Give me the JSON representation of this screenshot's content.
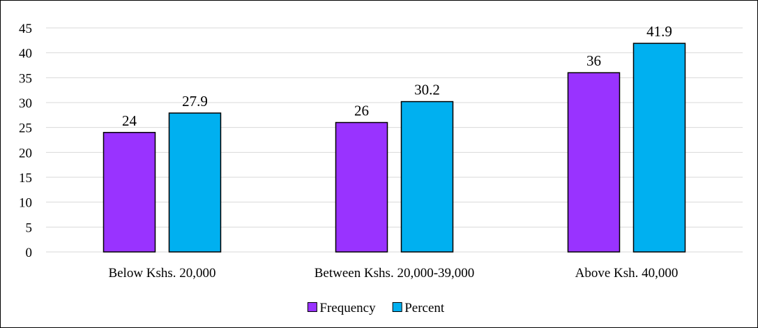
{
  "chart_data": {
    "type": "bar",
    "categories": [
      "Below Kshs. 20,000",
      "Between Kshs. 20,000-39,000",
      "Above Ksh. 40,000"
    ],
    "series": [
      {
        "name": "Frequency",
        "values": [
          24,
          26,
          36
        ],
        "color": "#9933FF"
      },
      {
        "name": "Percent",
        "values": [
          27.9,
          30.2,
          41.9
        ],
        "color": "#00B0F0"
      }
    ],
    "yticks": [
      0,
      5,
      10,
      15,
      20,
      25,
      30,
      35,
      40,
      45
    ],
    "ylim": [
      0,
      45
    ],
    "grid": true,
    "legend_position": "bottom",
    "data_labels": true,
    "title": "",
    "xlabel": "",
    "ylabel": ""
  }
}
